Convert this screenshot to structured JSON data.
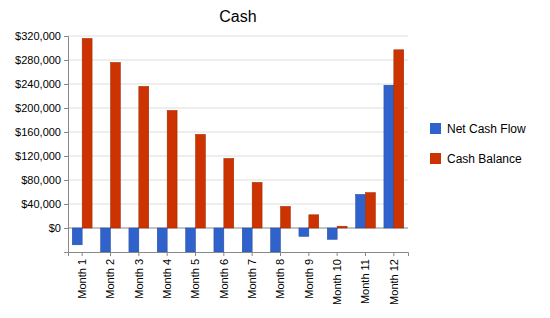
{
  "chart_data": {
    "type": "bar",
    "title": "Cash",
    "categories": [
      "Month 1",
      "Month 2",
      "Month 3",
      "Month 4",
      "Month 5",
      "Month 6",
      "Month 7",
      "Month 8",
      "Month 9",
      "Month 10",
      "Month 11",
      "Month 12"
    ],
    "series": [
      {
        "name": "Net Cash Flow",
        "color": "#3062cc",
        "values": [
          -28000,
          -40000,
          -40000,
          -40000,
          -40000,
          -40000,
          -40000,
          -40000,
          -14000,
          -19000,
          56000,
          238000
        ]
      },
      {
        "name": "Cash Balance",
        "color": "#cc3300",
        "values": [
          316000,
          276000,
          236000,
          196000,
          156000,
          116000,
          76000,
          36000,
          22000,
          3000,
          59000,
          297000
        ]
      }
    ],
    "ylim": [
      -40000,
      320000
    ],
    "yticks": [
      {
        "value": 0,
        "label": "$0"
      },
      {
        "value": 40000,
        "label": "$40,000"
      },
      {
        "value": 80000,
        "label": "$80,000"
      },
      {
        "value": 120000,
        "label": "$120,000"
      },
      {
        "value": 160000,
        "label": "$160,000"
      },
      {
        "value": 200000,
        "label": "$200,000"
      },
      {
        "value": 240000,
        "label": "$240,000"
      },
      {
        "value": 280000,
        "label": "$280,000"
      },
      {
        "value": 320000,
        "label": "$320,000"
      }
    ],
    "grid": true,
    "legend": "right"
  }
}
